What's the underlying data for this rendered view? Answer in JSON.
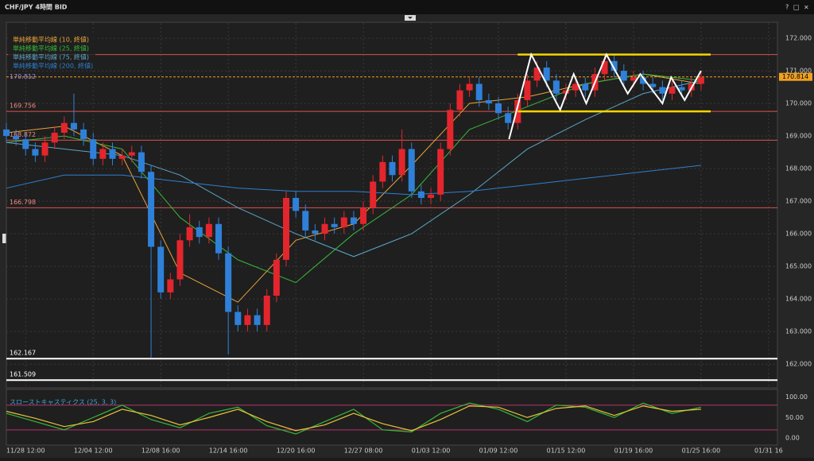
{
  "window": {
    "title": "CHF/JPY 4時間 BID",
    "buttons": [
      "?",
      "□",
      "×"
    ]
  },
  "chart_data": [
    {
      "type": "candlestick",
      "open": [
        169.2,
        169.0,
        168.9,
        168.6,
        168.4,
        168.8,
        169.1,
        169.4,
        169.2,
        168.9,
        168.3,
        168.6,
        168.3,
        168.4,
        168.5,
        167.9,
        165.6,
        164.2,
        164.6,
        165.8,
        166.2,
        165.9,
        166.3,
        165.4,
        163.6,
        163.2,
        163.5,
        163.2,
        164.1,
        165.2,
        167.1,
        166.7,
        166.1,
        166.0,
        166.3,
        166.2,
        166.5,
        166.3,
        166.8,
        167.6,
        168.2,
        167.8,
        168.6,
        167.3,
        167.1,
        167.2,
        168.6,
        169.8,
        170.4,
        170.6,
        170.1,
        170.0,
        169.7,
        169.4,
        170.1,
        170.7,
        171.1,
        170.7,
        170.3,
        170.4,
        170.6,
        170.4,
        170.9,
        171.3,
        171.0,
        170.7,
        170.8,
        170.6,
        170.5,
        170.3,
        170.5,
        170.4,
        170.6
      ],
      "high": [
        169.4,
        169.2,
        169.1,
        168.8,
        169.0,
        169.3,
        169.6,
        170.3,
        169.4,
        169.1,
        168.8,
        168.8,
        168.6,
        168.7,
        168.7,
        168.1,
        165.8,
        164.8,
        166.0,
        166.6,
        166.4,
        166.5,
        166.5,
        165.6,
        163.8,
        163.7,
        163.7,
        164.3,
        165.4,
        167.3,
        167.3,
        166.9,
        166.3,
        166.5,
        166.5,
        166.7,
        166.7,
        167.0,
        167.8,
        168.4,
        168.4,
        169.2,
        168.8,
        167.5,
        167.4,
        168.8,
        170.0,
        170.6,
        170.8,
        170.8,
        170.3,
        170.2,
        169.9,
        170.3,
        170.9,
        171.3,
        171.3,
        170.9,
        170.6,
        170.8,
        170.8,
        171.1,
        171.5,
        171.5,
        171.2,
        171.0,
        171.0,
        170.8,
        170.7,
        170.7,
        170.7,
        170.8,
        171.0
      ],
      "low": [
        168.8,
        168.7,
        168.4,
        168.2,
        168.2,
        168.6,
        168.9,
        169.0,
        168.7,
        168.1,
        168.1,
        168.1,
        168.1,
        168.2,
        167.7,
        162.2,
        164.0,
        164.0,
        164.4,
        165.6,
        165.7,
        165.7,
        165.2,
        162.3,
        163.0,
        163.0,
        163.0,
        163.0,
        163.9,
        165.0,
        166.5,
        165.9,
        165.8,
        165.8,
        166.0,
        166.0,
        166.1,
        166.1,
        166.6,
        167.4,
        167.6,
        167.6,
        167.1,
        166.9,
        166.9,
        167.0,
        168.4,
        169.6,
        170.2,
        169.9,
        169.8,
        169.5,
        169.2,
        169.2,
        169.9,
        170.5,
        170.5,
        170.1,
        170.1,
        170.2,
        170.2,
        170.2,
        170.7,
        170.8,
        170.5,
        170.5,
        170.4,
        170.3,
        170.1,
        170.1,
        170.2,
        170.2,
        170.4
      ],
      "close": [
        169.0,
        168.9,
        168.6,
        168.4,
        168.8,
        169.1,
        169.4,
        169.2,
        168.9,
        168.3,
        168.6,
        168.3,
        168.4,
        168.5,
        167.9,
        165.6,
        164.2,
        164.6,
        165.8,
        166.2,
        165.9,
        166.3,
        165.4,
        163.6,
        163.2,
        163.5,
        163.2,
        164.1,
        165.2,
        167.1,
        166.7,
        166.1,
        166.0,
        166.3,
        166.2,
        166.5,
        166.3,
        166.8,
        167.6,
        168.2,
        167.8,
        168.6,
        167.3,
        167.1,
        167.2,
        168.6,
        169.8,
        170.4,
        170.6,
        170.1,
        170.0,
        169.7,
        169.4,
        170.1,
        170.7,
        171.1,
        170.7,
        170.3,
        170.4,
        170.6,
        170.4,
        170.9,
        171.3,
        171.0,
        170.7,
        170.8,
        170.6,
        170.5,
        170.3,
        170.5,
        170.4,
        170.6,
        170.8
      ],
      "up_color": "#e3262d",
      "down_color": "#2f80d8",
      "series": [
        {
          "name": "単純移動平均線 (10, 終値)",
          "color": "#e8a33a",
          "x": [
            0,
            6,
            12,
            18,
            24,
            30,
            36,
            42,
            48,
            54,
            60,
            66,
            72
          ],
          "values": [
            169.1,
            169.3,
            168.4,
            164.8,
            163.9,
            165.8,
            166.3,
            168.1,
            170.0,
            170.2,
            170.6,
            170.9,
            170.6
          ]
        },
        {
          "name": "単純移動平均線 (25, 終値)",
          "color": "#38b83a",
          "x": [
            0,
            6,
            12,
            18,
            24,
            30,
            36,
            42,
            48,
            54,
            60,
            66,
            72
          ],
          "values": [
            168.8,
            169.0,
            168.6,
            166.5,
            165.2,
            164.5,
            166.0,
            167.2,
            169.2,
            169.9,
            170.6,
            170.9,
            170.7
          ]
        },
        {
          "name": "単純移動平均線 (75, 終値)",
          "color": "#5aa6c8",
          "x": [
            0,
            6,
            12,
            18,
            24,
            30,
            36,
            42,
            48,
            54,
            60,
            66,
            72
          ],
          "values": [
            168.8,
            168.6,
            168.4,
            167.8,
            166.8,
            166.0,
            165.3,
            166.0,
            167.2,
            168.6,
            169.5,
            170.3,
            170.7
          ]
        },
        {
          "name": "単純移動平均線 (200, 終値)",
          "color": "#2f7fd0",
          "x": [
            0,
            6,
            12,
            18,
            24,
            30,
            36,
            42,
            48,
            54,
            60,
            66,
            72
          ],
          "values": [
            167.4,
            167.8,
            167.8,
            167.6,
            167.4,
            167.3,
            167.3,
            167.2,
            167.3,
            167.5,
            167.7,
            167.9,
            168.1
          ]
        }
      ],
      "levels": [
        {
          "value": 171.5,
          "color": "#d9534f"
        },
        {
          "value": 169.756,
          "label": "169.756",
          "color": "#d9534f"
        },
        {
          "value": 168.872,
          "label": "168.872",
          "color": "#d9534f"
        },
        {
          "value": 166.798,
          "label": "166.798",
          "color": "#d9534f"
        },
        {
          "value": 162.167,
          "label": "162.167",
          "color": "#ffffff"
        },
        {
          "value": 161.509,
          "label": "161.509",
          "color": "#ffffff"
        }
      ],
      "current_price": {
        "value": 170.814,
        "label": "170.814",
        "left_label": "170.812",
        "color": "#f0a020"
      },
      "annotations": [
        {
          "color": "#f5d400",
          "x": [
            53,
            73
          ],
          "values": [
            171.5,
            169.756
          ]
        },
        {
          "color": "#ffffff",
          "x": [
            52.1,
            54.4,
            57.4,
            58.8,
            60.1,
            62.2,
            64.4,
            65.7,
            68.0,
            68.9,
            70.3,
            72.0
          ],
          "values": [
            168.9,
            171.5,
            169.8,
            170.9,
            170.0,
            171.5,
            170.3,
            170.9,
            170.0,
            170.8,
            170.1,
            171.0
          ]
        }
      ],
      "xlim": [
        0,
        80
      ],
      "xticks": [
        {
          "value": 2,
          "label": "11/28 12:00"
        },
        {
          "value": 9,
          "label": "12/04 12:00"
        },
        {
          "value": 16,
          "label": "12/08 16:00"
        },
        {
          "value": 23,
          "label": "12/14 16:00"
        },
        {
          "value": 30,
          "label": "12/20 16:00"
        },
        {
          "value": 37,
          "label": "12/27 08:00"
        },
        {
          "value": 44,
          "label": "01/03 12:00"
        },
        {
          "value": 51,
          "label": "01/09 12:00"
        },
        {
          "value": 58,
          "label": "01/15 12:00"
        },
        {
          "value": 65,
          "label": "01/19 16:00"
        },
        {
          "value": 72,
          "label": "01/25 16:00"
        },
        {
          "value": 79,
          "label": "01/31 16"
        }
      ],
      "ylim": [
        161.27,
        172.49
      ],
      "yticks": [
        {
          "value": 162,
          "label": "162.000"
        },
        {
          "value": 163,
          "label": "163.000"
        },
        {
          "value": 164,
          "label": "164.000"
        },
        {
          "value": 165,
          "label": "165.000"
        },
        {
          "value": 166,
          "label": "166.000"
        },
        {
          "value": 167,
          "label": "167.000"
        },
        {
          "value": 168,
          "label": "168.000"
        },
        {
          "value": 169,
          "label": "169.000"
        },
        {
          "value": 170,
          "label": "170.000"
        },
        {
          "value": 171,
          "label": "171.000"
        },
        {
          "value": 172,
          "label": "172.000"
        }
      ],
      "grid": true
    },
    {
      "type": "line",
      "title": "スローストキャスティクス (25, 3, 3)",
      "x": [
        0,
        3,
        6,
        9,
        12,
        15,
        18,
        21,
        24,
        27,
        30,
        33,
        36,
        39,
        42,
        45,
        48,
        51,
        54,
        57,
        60,
        63,
        66,
        69,
        72
      ],
      "series": [
        {
          "color": "#38b83a",
          "values": [
            60,
            40,
            20,
            50,
            80,
            45,
            25,
            60,
            75,
            30,
            10,
            40,
            70,
            20,
            15,
            60,
            85,
            70,
            40,
            80,
            75,
            50,
            85,
            60,
            75
          ]
        },
        {
          "color": "#e8c23a",
          "values": [
            65,
            48,
            28,
            40,
            70,
            55,
            32,
            50,
            70,
            40,
            18,
            32,
            60,
            35,
            18,
            45,
            78,
            75,
            50,
            72,
            78,
            55,
            78,
            65,
            70
          ]
        }
      ],
      "levels": [
        80,
        20
      ],
      "level_color": "#b8336a",
      "xlim": [
        0,
        80
      ],
      "ylim": [
        -17,
        118
      ],
      "yticks": [
        {
          "value": 0,
          "label": "0.00"
        },
        {
          "value": 50,
          "label": "50.00"
        },
        {
          "value": 100,
          "label": "100.00"
        }
      ],
      "grid": true
    }
  ]
}
